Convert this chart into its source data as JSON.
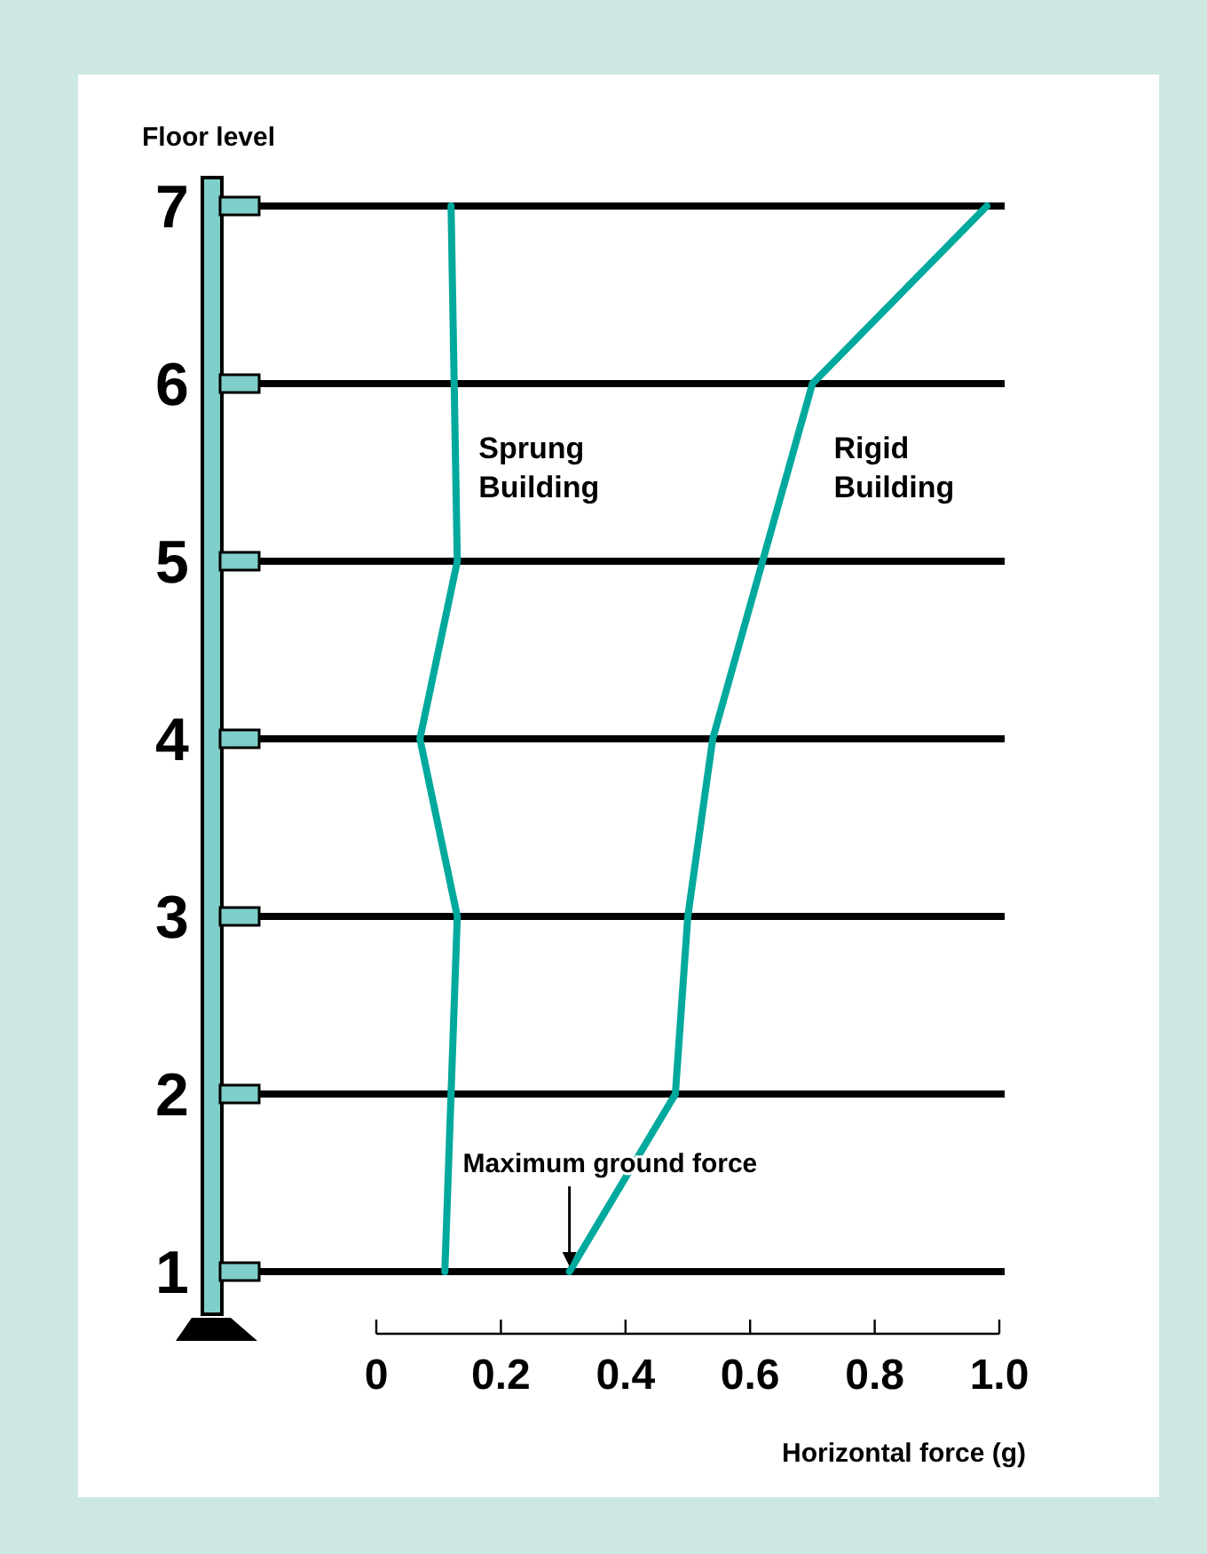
{
  "chart_data": {
    "type": "line",
    "ylabel": "Floor level",
    "xlabel": "Horizontal force (g)",
    "xlim": [
      0,
      1
    ],
    "xticks": [
      0,
      0.2,
      0.4,
      0.6,
      0.8,
      {
        "value": 1,
        "label": "1.0"
      }
    ],
    "ylim": [
      1,
      7
    ],
    "yticks": [
      1,
      2,
      3,
      4,
      5,
      6,
      7
    ],
    "grid": "y",
    "marker": "none",
    "line_style": "solid",
    "series": [
      {
        "name": "Sprung Building",
        "color": "#00a99d",
        "x": [
          0.11,
          0.12,
          0.13,
          0.07,
          0.13,
          0.125,
          0.12
        ],
        "values": [
          1,
          2,
          3,
          4,
          5,
          6,
          7
        ]
      },
      {
        "name": "Rigid Building",
        "color": "#00a99d",
        "x": [
          0.31,
          0.48,
          0.5,
          0.54,
          0.62,
          0.7,
          0.98
        ],
        "values": [
          1,
          2,
          3,
          4,
          5,
          6,
          7
        ]
      }
    ],
    "annotations": [
      {
        "text": "Maximum ground force",
        "x": 0.31,
        "y": 1
      }
    ]
  }
}
